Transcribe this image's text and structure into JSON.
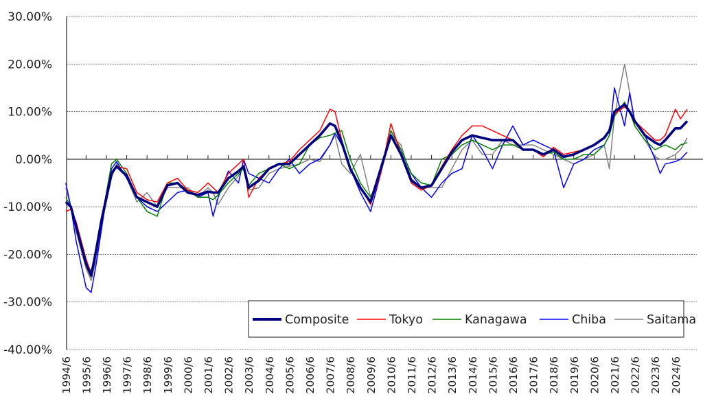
{
  "chart_data": {
    "type": "line",
    "title": "",
    "xlabel": "",
    "ylabel": "",
    "ylim": [
      -40,
      30
    ],
    "y_ticks": [
      "30.00%",
      "20.00%",
      "10.00%",
      "0.00%",
      "-10.00%",
      "-20.00%",
      "-30.00%",
      "-40.00%"
    ],
    "y_tick_values": [
      30,
      20,
      10,
      0,
      -10,
      -20,
      -30,
      -40
    ],
    "x_ticks": [
      "1994/6",
      "1995/6",
      "1996/6",
      "1997/6",
      "1998/6",
      "1999/6",
      "2000/6",
      "2001/6",
      "2002/6",
      "2003/6",
      "2004/6",
      "2005/6",
      "2006/6",
      "2007/6",
      "2008/6",
      "2009/6",
      "2010/6",
      "2011/6",
      "2012/6",
      "2013/6",
      "2014/6",
      "2015/6",
      "2016/6",
      "2017/6",
      "2018/6",
      "2019/6",
      "2020/6",
      "2021/6",
      "2022/6",
      "2023/6",
      "2024/6"
    ],
    "grid": "horizontal dashed",
    "legend_position": "bottom-right",
    "x": [
      "1994-06",
      "1994-09",
      "1994-12",
      "1995-03",
      "1995-06",
      "1995-09",
      "1995-12",
      "1996-03",
      "1996-06",
      "1996-09",
      "1996-12",
      "1997-06",
      "1997-12",
      "1998-06",
      "1998-12",
      "1999-06",
      "1999-12",
      "2000-06",
      "2000-12",
      "2001-06",
      "2001-09",
      "2001-12",
      "2002-06",
      "2002-12",
      "2003-03",
      "2003-06",
      "2003-12",
      "2004-06",
      "2004-12",
      "2005-06",
      "2005-12",
      "2006-06",
      "2006-12",
      "2007-06",
      "2007-09",
      "2008-01",
      "2008-06",
      "2008-12",
      "2009-06",
      "2009-12",
      "2010-06",
      "2010-12",
      "2011-06",
      "2011-12",
      "2012-06",
      "2012-12",
      "2013-06",
      "2013-12",
      "2014-06",
      "2014-12",
      "2015-06",
      "2015-12",
      "2016-06",
      "2016-12",
      "2017-06",
      "2017-12",
      "2018-06",
      "2018-12",
      "2019-06",
      "2019-12",
      "2020-06",
      "2020-12",
      "2021-03",
      "2021-06",
      "2021-12",
      "2022-03",
      "2022-06",
      "2022-12",
      "2023-06",
      "2023-09",
      "2023-12",
      "2024-06",
      "2024-09",
      "2025-01"
    ],
    "series": [
      {
        "name": "Composite",
        "color": "#00007f",
        "values": [
          -9,
          -10,
          -14,
          -18,
          -22,
          -24.5,
          -19,
          -13,
          -8,
          -3,
          -1.5,
          -3.5,
          -8,
          -9,
          -10,
          -5.5,
          -5,
          -7,
          -7.5,
          -6.8,
          -7,
          -7,
          -4,
          -2.5,
          -1.5,
          -6,
          -4.5,
          -2,
          -1,
          -1,
          1,
          3,
          5,
          7.5,
          7,
          3.5,
          -2,
          -6,
          -9,
          -2,
          5,
          1,
          -4.5,
          -6,
          -5.5,
          -2,
          1.5,
          4,
          5,
          4.5,
          4,
          4,
          4,
          2,
          2,
          1,
          2,
          0.5,
          1,
          2,
          3,
          4.5,
          6,
          10,
          11.5,
          10,
          8,
          5,
          3.5,
          3,
          4,
          6.5,
          6.5,
          8
        ]
      },
      {
        "name": "Tokyo",
        "color": "#ff0000",
        "values": [
          -11,
          -10.5,
          -13,
          -17,
          -21,
          -24,
          -19,
          -13,
          -8,
          -3,
          -1.5,
          -2,
          -7,
          -8.5,
          -9,
          -5,
          -4,
          -6.5,
          -7,
          -5,
          -6,
          -7,
          -3,
          -1,
          0,
          -8,
          -4,
          -2,
          -1,
          -0.5,
          2,
          4,
          6,
          10.5,
          10,
          4,
          -2,
          -6,
          -9.5,
          -3,
          7.5,
          1,
          -5,
          -6.5,
          -5.5,
          -1.5,
          2,
          5,
          7,
          7,
          6,
          5,
          4,
          2,
          2,
          0.5,
          2.5,
          1,
          1.5,
          2,
          3,
          4.5,
          6,
          9.5,
          11,
          10,
          8,
          6,
          4,
          4,
          5,
          10.5,
          8.5,
          10.5
        ]
      },
      {
        "name": "Kanagawa",
        "color": "#008000",
        "values": [
          -8,
          -10,
          -14,
          -18,
          -22,
          -23.5,
          -19,
          -13,
          -7,
          -1,
          0,
          -3,
          -8,
          -11,
          -12,
          -5,
          -5,
          -6.5,
          -8,
          -8,
          -8.5,
          -7.5,
          -5,
          -3,
          -2,
          -5.5,
          -3,
          -2,
          -1,
          -2,
          -1,
          3,
          4.5,
          5,
          5.5,
          6,
          0,
          -5,
          -8,
          -3,
          6,
          2,
          -3,
          -5,
          -5.5,
          0,
          1,
          3,
          4,
          3,
          2,
          3,
          3,
          2,
          2,
          1,
          1.5,
          0,
          0,
          1,
          1,
          3,
          5,
          9,
          12,
          10,
          7,
          4,
          2,
          2.5,
          3,
          2,
          3,
          3.5
        ]
      },
      {
        "name": "Chiba",
        "color": "#0000ff",
        "values": [
          -5,
          -10,
          -17,
          -22,
          -27,
          -28,
          -22,
          -15,
          -8,
          -2,
          -0.5,
          -4,
          -8,
          -10,
          -11,
          -9,
          -7,
          -6.5,
          -8,
          -7,
          -12,
          -8,
          -2.5,
          -5,
          0,
          -3,
          -4,
          -5,
          -2,
          0,
          -3,
          -1,
          0,
          3,
          5.5,
          3,
          -2,
          -7,
          -11,
          -3,
          6,
          2,
          -3,
          -6,
          -8,
          -5,
          -3,
          -2,
          5,
          2,
          -2,
          3,
          7,
          3,
          4,
          3,
          2,
          -6,
          -1,
          0,
          2,
          3,
          5,
          15,
          7,
          14,
          8,
          5,
          0,
          -3,
          -1,
          -0.5,
          0,
          1.5
        ]
      },
      {
        "name": "Saitama",
        "color": "#808080",
        "values": [
          -6,
          -10,
          -15,
          -19,
          -23,
          -25.5,
          -21,
          -14,
          -9,
          -4,
          -1,
          -4,
          -9,
          -7,
          -10,
          -6,
          -6,
          -6,
          -8,
          -6,
          -7,
          -9.5,
          -6,
          -3.5,
          -1.5,
          -6.5,
          -6,
          -3,
          -2,
          -1.5,
          -1,
          0,
          -0.5,
          3,
          5,
          -1,
          -3,
          1,
          -8,
          -3,
          5,
          3,
          -4,
          -6,
          -6,
          -6,
          -2,
          2,
          4,
          1,
          1,
          4,
          3,
          3,
          3,
          2,
          1,
          0,
          -1,
          0,
          1,
          3,
          -2,
          9,
          20,
          14,
          7,
          4,
          0.5,
          0,
          0,
          1,
          2,
          4.5
        ]
      }
    ]
  }
}
